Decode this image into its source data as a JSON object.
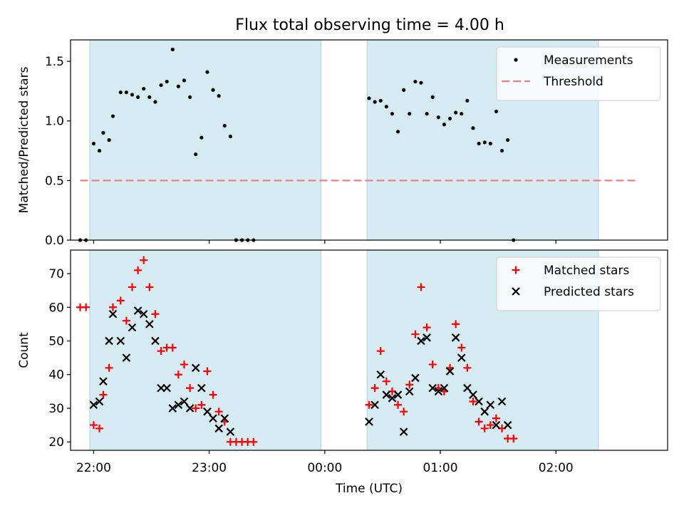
{
  "title": "Flux total observing time = 4.00 h",
  "chart_data": [
    {
      "type": "scatter",
      "panel": "top",
      "ylabel": "Matched/Predicted stars",
      "xlim": [
        "21:48",
        "02:58"
      ],
      "ylim": [
        0,
        1.68
      ],
      "yticks": [
        0.0,
        0.5,
        1.0,
        1.5
      ],
      "ytick_labels": [
        "0.0",
        "0.5",
        "1.0",
        "1.5"
      ],
      "grid": false,
      "legend_position": "top-right",
      "shaded_regions": [
        [
          "21:58",
          "23:58"
        ],
        [
          "00:22",
          "02:22"
        ]
      ],
      "threshold": {
        "name": "Threshold",
        "value": 0.5,
        "x_range": [
          "21:53",
          "02:42"
        ],
        "color": "#f08080"
      },
      "series": [
        {
          "name": "Measurements",
          "color": "#000000",
          "marker": "dot",
          "points": [
            [
              "21:53",
              0.0
            ],
            [
              "21:56",
              0.0
            ],
            [
              "22:00",
              0.81
            ],
            [
              "22:03",
              0.75
            ],
            [
              "22:05",
              0.9
            ],
            [
              "22:08",
              0.84
            ],
            [
              "22:10",
              1.04
            ],
            [
              "22:14",
              1.24
            ],
            [
              "22:17",
              1.24
            ],
            [
              "22:20",
              1.22
            ],
            [
              "22:23",
              1.2
            ],
            [
              "22:26",
              1.27
            ],
            [
              "22:29",
              1.2
            ],
            [
              "22:32",
              1.16
            ],
            [
              "22:35",
              1.3
            ],
            [
              "22:38",
              1.33
            ],
            [
              "22:41",
              1.6
            ],
            [
              "22:44",
              1.29
            ],
            [
              "22:47",
              1.34
            ],
            [
              "22:50",
              1.2
            ],
            [
              "22:53",
              0.72
            ],
            [
              "22:56",
              0.86
            ],
            [
              "22:59",
              1.41
            ],
            [
              "23:02",
              1.26
            ],
            [
              "23:05",
              1.21
            ],
            [
              "23:08",
              0.96
            ],
            [
              "23:11",
              0.87
            ],
            [
              "23:14",
              0.0
            ],
            [
              "23:17",
              0.0
            ],
            [
              "23:20",
              0.0
            ],
            [
              "23:23",
              0.0
            ],
            [
              "00:23",
              1.19
            ],
            [
              "00:26",
              1.16
            ],
            [
              "00:29",
              1.17
            ],
            [
              "00:32",
              1.12
            ],
            [
              "00:35",
              1.06
            ],
            [
              "00:38",
              0.91
            ],
            [
              "00:41",
              1.26
            ],
            [
              "00:44",
              1.06
            ],
            [
              "00:47",
              1.33
            ],
            [
              "00:50",
              1.32
            ],
            [
              "00:53",
              1.06
            ],
            [
              "00:56",
              1.2
            ],
            [
              "00:59",
              1.03
            ],
            [
              "01:02",
              0.97
            ],
            [
              "01:05",
              1.02
            ],
            [
              "01:08",
              1.07
            ],
            [
              "01:11",
              1.06
            ],
            [
              "01:14",
              1.17
            ],
            [
              "01:17",
              0.94
            ],
            [
              "01:20",
              0.81
            ],
            [
              "01:23",
              0.82
            ],
            [
              "01:26",
              0.81
            ],
            [
              "01:29",
              1.08
            ],
            [
              "01:32",
              0.75
            ],
            [
              "01:35",
              0.84
            ],
            [
              "01:38",
              0.0
            ]
          ]
        }
      ]
    },
    {
      "type": "scatter",
      "panel": "bottom",
      "xlabel": "Time (UTC)",
      "ylabel": "Count",
      "xlim": [
        "21:48",
        "02:58"
      ],
      "ylim": [
        17.5,
        77
      ],
      "yticks": [
        20,
        30,
        40,
        50,
        60,
        70
      ],
      "ytick_labels": [
        "20",
        "30",
        "40",
        "50",
        "60",
        "70"
      ],
      "xticks": [
        "22:00",
        "23:00",
        "00:00",
        "01:00",
        "02:00"
      ],
      "xtick_labels": [
        "22:00",
        "23:00",
        "00:00",
        "01:00",
        "02:00"
      ],
      "grid": false,
      "legend_position": "top-right",
      "shaded_regions": [
        [
          "21:58",
          "23:58"
        ],
        [
          "00:22",
          "02:22"
        ]
      ],
      "series": [
        {
          "name": "Matched stars",
          "color": "#ff0000",
          "marker": "plus",
          "points": [
            [
              "21:53",
              60
            ],
            [
              "21:56",
              60
            ],
            [
              "22:00",
              25
            ],
            [
              "22:03",
              24
            ],
            [
              "22:05",
              34
            ],
            [
              "22:08",
              42
            ],
            [
              "22:10",
              60
            ],
            [
              "22:14",
              62
            ],
            [
              "22:17",
              56
            ],
            [
              "22:20",
              66
            ],
            [
              "22:23",
              71
            ],
            [
              "22:26",
              74
            ],
            [
              "22:29",
              66
            ],
            [
              "22:32",
              58
            ],
            [
              "22:35",
              47
            ],
            [
              "22:38",
              48
            ],
            [
              "22:41",
              48
            ],
            [
              "22:44",
              40
            ],
            [
              "22:47",
              43
            ],
            [
              "22:50",
              36
            ],
            [
              "22:53",
              30
            ],
            [
              "22:56",
              31
            ],
            [
              "22:59",
              41
            ],
            [
              "23:02",
              34
            ],
            [
              "23:05",
              29
            ],
            [
              "23:08",
              26
            ],
            [
              "23:11",
              20
            ],
            [
              "23:14",
              20
            ],
            [
              "23:17",
              20
            ],
            [
              "23:20",
              20
            ],
            [
              "23:23",
              20
            ],
            [
              "00:23",
              31
            ],
            [
              "00:26",
              36
            ],
            [
              "00:29",
              47
            ],
            [
              "00:32",
              38
            ],
            [
              "00:35",
              35
            ],
            [
              "00:38",
              31
            ],
            [
              "00:41",
              29
            ],
            [
              "00:44",
              37
            ],
            [
              "00:47",
              52
            ],
            [
              "00:50",
              66
            ],
            [
              "00:53",
              54
            ],
            [
              "00:56",
              43
            ],
            [
              "00:59",
              36
            ],
            [
              "01:02",
              35
            ],
            [
              "01:05",
              42
            ],
            [
              "01:08",
              55
            ],
            [
              "01:11",
              48
            ],
            [
              "01:14",
              42
            ],
            [
              "01:17",
              32
            ],
            [
              "01:20",
              26
            ],
            [
              "01:23",
              24
            ],
            [
              "01:26",
              25
            ],
            [
              "01:29",
              27
            ],
            [
              "01:32",
              24
            ],
            [
              "01:35",
              21
            ],
            [
              "01:38",
              21
            ]
          ]
        },
        {
          "name": "Predicted stars",
          "color": "#000000",
          "marker": "x",
          "points": [
            [
              "22:00",
              31
            ],
            [
              "22:03",
              32
            ],
            [
              "22:05",
              38
            ],
            [
              "22:08",
              50
            ],
            [
              "22:10",
              58
            ],
            [
              "22:14",
              50
            ],
            [
              "22:17",
              45
            ],
            [
              "22:20",
              54
            ],
            [
              "22:23",
              59
            ],
            [
              "22:26",
              58
            ],
            [
              "22:29",
              55
            ],
            [
              "22:32",
              50
            ],
            [
              "22:35",
              36
            ],
            [
              "22:38",
              36
            ],
            [
              "22:41",
              30
            ],
            [
              "22:44",
              31
            ],
            [
              "22:47",
              32
            ],
            [
              "22:50",
              30
            ],
            [
              "22:53",
              42
            ],
            [
              "22:56",
              36
            ],
            [
              "22:59",
              29
            ],
            [
              "23:02",
              27
            ],
            [
              "23:05",
              24
            ],
            [
              "23:08",
              27
            ],
            [
              "23:11",
              23
            ],
            [
              "00:23",
              26
            ],
            [
              "00:26",
              31
            ],
            [
              "00:29",
              40
            ],
            [
              "00:32",
              34
            ],
            [
              "00:35",
              33
            ],
            [
              "00:38",
              34
            ],
            [
              "00:41",
              23
            ],
            [
              "00:44",
              35
            ],
            [
              "00:47",
              39
            ],
            [
              "00:50",
              50
            ],
            [
              "00:53",
              51
            ],
            [
              "00:56",
              36
            ],
            [
              "00:59",
              35
            ],
            [
              "01:02",
              36
            ],
            [
              "01:05",
              41
            ],
            [
              "01:08",
              51
            ],
            [
              "01:11",
              45
            ],
            [
              "01:14",
              36
            ],
            [
              "01:17",
              34
            ],
            [
              "01:20",
              32
            ],
            [
              "01:23",
              29
            ],
            [
              "01:26",
              31
            ],
            [
              "01:29",
              25
            ],
            [
              "01:32",
              32
            ],
            [
              "01:35",
              25
            ]
          ]
        }
      ]
    }
  ],
  "colors": {
    "shade": "#add8e6",
    "shade_opacity": 0.5
  }
}
